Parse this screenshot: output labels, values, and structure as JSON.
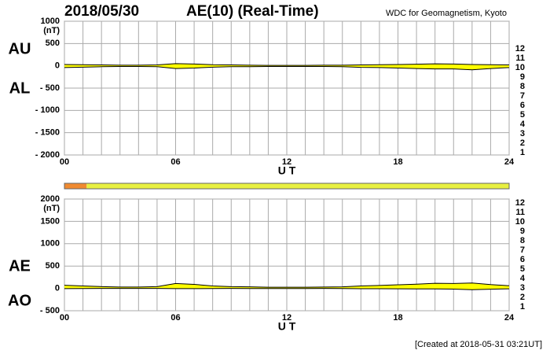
{
  "header": {
    "date": "2018/05/30",
    "title": "AE(10) (Real-Time)",
    "source": "WDC for Geomagnetism, Kyoto"
  },
  "footer": "[Created at 2018-05-31 03:21UT]",
  "stations": {
    "counts": [
      12,
      11,
      10,
      9,
      8,
      7,
      6,
      5,
      4,
      3,
      2,
      1
    ],
    "colors": [
      "#ff1493",
      "#e00000",
      "#ff9900",
      "#f0e000",
      "#b8f040",
      "#40e0e0",
      "#2080ff",
      "#2020c0",
      "#e000e0",
      "#000000",
      "#808080",
      "#c0c0c0"
    ]
  },
  "station_bar": [
    {
      "start": 0,
      "end": 1.2,
      "color": "#f08a30"
    },
    {
      "start": 1.2,
      "end": 24,
      "color": "#e8f040"
    }
  ],
  "chart_data": [
    {
      "type": "band",
      "y_unit": "(nT)",
      "x_label": "U T",
      "fill": "#ffff00",
      "x": [
        0,
        1,
        2,
        3,
        4,
        5,
        6,
        7,
        8,
        9,
        10,
        11,
        12,
        13,
        14,
        15,
        16,
        17,
        18,
        19,
        20,
        21,
        22,
        23,
        24
      ],
      "series": [
        {
          "name": "AU",
          "color": "#000000",
          "values": [
            30,
            25,
            20,
            15,
            15,
            20,
            50,
            40,
            25,
            20,
            15,
            10,
            10,
            10,
            15,
            15,
            20,
            25,
            30,
            35,
            45,
            40,
            30,
            25,
            20
          ]
        },
        {
          "name": "AL",
          "color": "#000000",
          "values": [
            -40,
            -30,
            -20,
            -15,
            -15,
            -20,
            -60,
            -50,
            -30,
            -20,
            -20,
            -15,
            -15,
            -15,
            -15,
            -20,
            -35,
            -40,
            -50,
            -60,
            -70,
            -70,
            -90,
            -60,
            -40
          ]
        }
      ],
      "xlim": [
        0,
        24
      ],
      "xticks": [
        {
          "value": 0,
          "label": "00"
        },
        {
          "value": 6,
          "label": "06"
        },
        12,
        18,
        24
      ],
      "xgrid": [
        1,
        2,
        3,
        4,
        5,
        7,
        8,
        9,
        10,
        11,
        13,
        14,
        15,
        16,
        17,
        19,
        20,
        21,
        22,
        23
      ],
      "ylim": [
        -2000,
        1000
      ],
      "yticks": [
        1000,
        500,
        0,
        {
          "value": -500,
          "label": "- 500"
        },
        {
          "value": -1000,
          "label": "- 1000"
        },
        {
          "value": -1500,
          "label": "- 1500"
        },
        {
          "value": -2000,
          "label": "- 2000"
        }
      ],
      "grid": true
    },
    {
      "type": "band",
      "y_unit": "(nT)",
      "x_label": "U T",
      "fill": "#ffff00",
      "x": [
        0,
        1,
        2,
        3,
        4,
        5,
        6,
        7,
        8,
        9,
        10,
        11,
        12,
        13,
        14,
        15,
        16,
        17,
        18,
        19,
        20,
        21,
        22,
        23,
        24
      ],
      "series": [
        {
          "name": "AE",
          "color": "#000000",
          "values": [
            70,
            55,
            40,
            30,
            30,
            40,
            110,
            90,
            55,
            40,
            35,
            25,
            25,
            25,
            30,
            35,
            55,
            65,
            80,
            95,
            115,
            110,
            120,
            85,
            60
          ]
        },
        {
          "name": "AO",
          "color": "#000000",
          "values": [
            -5,
            -2.5,
            0,
            0,
            0,
            0,
            -5,
            -5,
            -2.5,
            0,
            -2.5,
            -2.5,
            -2.5,
            -2.5,
            0,
            -2.5,
            -7.5,
            -7.5,
            -10,
            -12.5,
            -12.5,
            -15,
            -30,
            -17.5,
            -10
          ]
        }
      ],
      "xlim": [
        0,
        24
      ],
      "xticks": [
        {
          "value": 0,
          "label": "00"
        },
        {
          "value": 6,
          "label": "06"
        },
        12,
        18,
        24
      ],
      "xgrid": [
        1,
        2,
        3,
        4,
        5,
        7,
        8,
        9,
        10,
        11,
        13,
        14,
        15,
        16,
        17,
        19,
        20,
        21,
        22,
        23
      ],
      "ylim": [
        -500,
        2000
      ],
      "yticks": [
        2000,
        1500,
        1000,
        500,
        0,
        {
          "value": -500,
          "label": "- 500"
        }
      ],
      "grid": true
    }
  ]
}
